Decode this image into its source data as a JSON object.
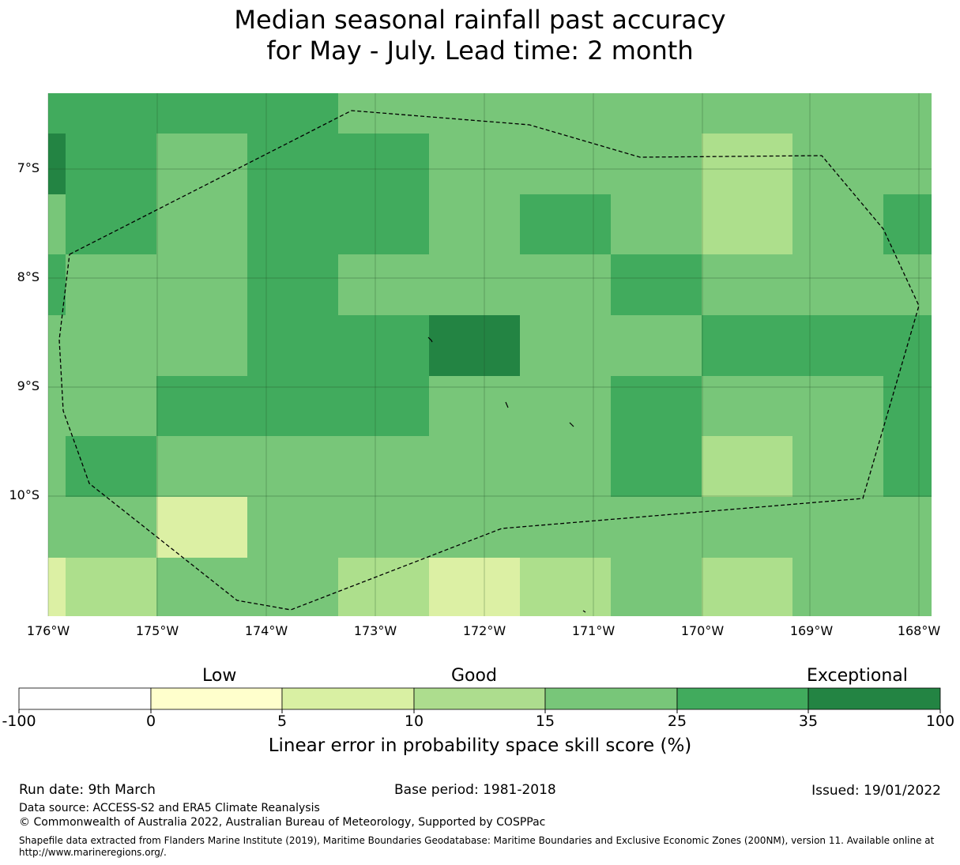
{
  "title": {
    "line1": "Median seasonal rainfall past accuracy",
    "line2": "for May - July. Lead time: 2 month"
  },
  "map": {
    "lat_labels": [
      "7°S",
      "8°S",
      "9°S",
      "10°S"
    ],
    "lon_labels": [
      "176°W",
      "175°W",
      "174°W",
      "173°W",
      "172°W",
      "171°W",
      "170°W",
      "169°W",
      "168°W"
    ],
    "cell_colors": [
      "#d9efa0",
      "#addf8c",
      "#78c679",
      "#41ab5d",
      "#238443"
    ]
  },
  "colorbar": {
    "category_labels": [
      "Low",
      "Good",
      "Exceptional"
    ],
    "tick_labels": [
      "-100",
      "0",
      "5",
      "10",
      "15",
      "25",
      "35",
      "100"
    ],
    "colors": [
      "#ffffff",
      "#ffffcc",
      "#d9f0a3",
      "#addd8e",
      "#78c679",
      "#41ab5d",
      "#238443"
    ],
    "axis_label": "Linear error in probability space skill score (%)"
  },
  "footer": {
    "run_date": "Run date: 9th March",
    "base_period": "Base period: 1981-2018",
    "issued": "Issued: 19/01/2022",
    "data_source": "Data source: ACCESS-S2 and ERA5 Climate Reanalysis",
    "copyright": "© Commonwealth of Australia 2022, Australian Bureau of Meteorology, Supported by COSPPac",
    "shapefile_line1": "Shapefile data extracted from Flanders Marine Institute (2019), Maritime Boundaries Geodatabase: Maritime Boundaries and Exclusive Economic Zones (200NM), version 11. Available online at",
    "shapefile_line2": "http://www.marineregions.org/."
  }
}
